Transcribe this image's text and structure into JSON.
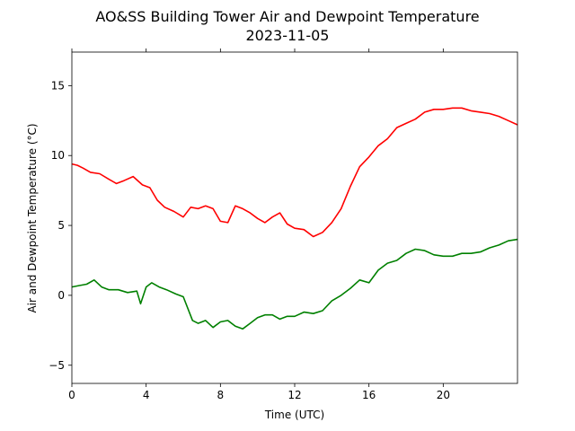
{
  "chart_data": {
    "type": "line",
    "title": "AO&SS Building Tower Air and Dewpoint Temperature",
    "subtitle": "2023-11-05",
    "xlabel": "Time (UTC)",
    "ylabel": "Air and Dewpoint Temperature (°C)",
    "xlim": [
      0,
      24
    ],
    "ylim": [
      -6.3,
      17.4
    ],
    "x_ticks": [
      0,
      4,
      8,
      12,
      16,
      20
    ],
    "x_tick_labels": [
      "0",
      "4",
      "8",
      "12",
      "16",
      "20"
    ],
    "y_ticks": [
      -5,
      0,
      5,
      10,
      15
    ],
    "y_tick_labels": [
      "−5",
      "0",
      "5",
      "10",
      "15"
    ],
    "grid": false,
    "series": [
      {
        "color": "#ff0000",
        "x": [
          0,
          0.3,
          0.6,
          1.0,
          1.5,
          2.0,
          2.4,
          2.8,
          3.3,
          3.8,
          4.2,
          4.6,
          5.0,
          5.5,
          6.0,
          6.4,
          6.8,
          7.2,
          7.6,
          8.0,
          8.4,
          8.8,
          9.2,
          9.6,
          10.0,
          10.4,
          10.8,
          11.2,
          11.6,
          12.0,
          12.5,
          13.0,
          13.5,
          14.0,
          14.5,
          15.0,
          15.5,
          16.0,
          16.5,
          17.0,
          17.5,
          18.0,
          18.5,
          19.0,
          19.5,
          20.0,
          20.5,
          21.0,
          21.5,
          22.0,
          22.5,
          23.0,
          23.5,
          24.0
        ],
        "values": [
          9.4,
          9.3,
          9.1,
          8.8,
          8.7,
          8.3,
          8.0,
          8.2,
          8.5,
          7.9,
          7.7,
          6.8,
          6.3,
          6.0,
          5.6,
          6.3,
          6.2,
          6.4,
          6.2,
          5.3,
          5.2,
          6.4,
          6.2,
          5.9,
          5.5,
          5.2,
          5.6,
          5.9,
          5.1,
          4.8,
          4.7,
          4.2,
          4.5,
          5.2,
          6.2,
          7.8,
          9.2,
          9.9,
          10.7,
          11.2,
          12.0,
          12.3,
          12.6,
          13.1,
          13.3,
          13.3,
          13.4,
          13.4,
          13.2,
          13.1,
          13.0,
          12.8,
          12.5,
          12.2
        ]
      },
      {
        "color": "#008000",
        "x": [
          0,
          0.4,
          0.8,
          1.2,
          1.6,
          2.0,
          2.5,
          3.0,
          3.5,
          3.7,
          4.0,
          4.3,
          4.7,
          5.1,
          5.6,
          6.0,
          6.5,
          6.8,
          7.2,
          7.6,
          8.0,
          8.4,
          8.8,
          9.2,
          9.6,
          10.0,
          10.4,
          10.8,
          11.2,
          11.6,
          12.0,
          12.5,
          13.0,
          13.5,
          14.0,
          14.5,
          15.0,
          15.5,
          16.0,
          16.5,
          17.0,
          17.5,
          18.0,
          18.5,
          19.0,
          19.5,
          20.0,
          20.5,
          21.0,
          21.5,
          22.0,
          22.5,
          23.0,
          23.5,
          24.0
        ],
        "values": [
          0.6,
          0.7,
          0.8,
          1.1,
          0.6,
          0.4,
          0.4,
          0.2,
          0.3,
          -0.6,
          0.6,
          0.9,
          0.6,
          0.4,
          0.1,
          -0.1,
          -1.8,
          -2.0,
          -1.8,
          -2.3,
          -1.9,
          -1.8,
          -2.2,
          -2.4,
          -2.0,
          -1.6,
          -1.4,
          -1.4,
          -1.7,
          -1.5,
          -1.5,
          -1.2,
          -1.3,
          -1.1,
          -0.4,
          0.0,
          0.5,
          1.1,
          0.9,
          1.8,
          2.3,
          2.5,
          3.0,
          3.3,
          3.2,
          2.9,
          2.8,
          2.8,
          3.0,
          3.0,
          3.1,
          3.4,
          3.6,
          3.9,
          4.0
        ]
      }
    ]
  }
}
